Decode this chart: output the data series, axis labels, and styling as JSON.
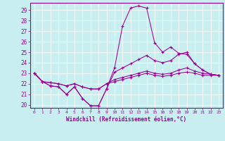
{
  "xlabel": "Windchill (Refroidissement éolien,°C)",
  "bg_color": "#c8eef0",
  "line_color": "#990099",
  "grid_color": "#ffffff",
  "spine_color": "#990099",
  "ylim": [
    19.7,
    29.7
  ],
  "xlim": [
    -0.5,
    23.5
  ],
  "yticks": [
    20,
    21,
    22,
    23,
    24,
    25,
    26,
    27,
    28,
    29
  ],
  "xticks": [
    0,
    1,
    2,
    3,
    4,
    5,
    6,
    7,
    8,
    9,
    10,
    11,
    12,
    13,
    14,
    15,
    16,
    17,
    18,
    19,
    20,
    21,
    22,
    23
  ],
  "line1_x": [
    0,
    1,
    2,
    3,
    4,
    5,
    6,
    7,
    8,
    9,
    10,
    11,
    12,
    13,
    14,
    15,
    16,
    17,
    18,
    19,
    20,
    21,
    22,
    23
  ],
  "line1_y": [
    23.0,
    22.2,
    21.8,
    21.7,
    21.0,
    21.7,
    20.6,
    19.9,
    19.9,
    21.5,
    23.5,
    27.5,
    29.2,
    29.4,
    29.2,
    25.9,
    25.0,
    25.5,
    24.9,
    24.8,
    23.9,
    23.3,
    22.9,
    22.8
  ],
  "line2_x": [
    0,
    1,
    2,
    3,
    4,
    5,
    6,
    7,
    8,
    9,
    10,
    11,
    12,
    13,
    14,
    15,
    16,
    17,
    18,
    19,
    20,
    21,
    22,
    23
  ],
  "line2_y": [
    23.0,
    22.2,
    21.8,
    21.7,
    21.0,
    21.7,
    20.6,
    19.9,
    19.9,
    21.5,
    23.1,
    23.5,
    23.9,
    24.3,
    24.7,
    24.2,
    24.0,
    24.2,
    24.8,
    25.0,
    23.9,
    23.3,
    22.9,
    22.8
  ],
  "line3_x": [
    0,
    1,
    2,
    3,
    4,
    5,
    6,
    7,
    8,
    9,
    10,
    11,
    12,
    13,
    14,
    15,
    16,
    17,
    18,
    19,
    20,
    21,
    22,
    23
  ],
  "line3_y": [
    23.0,
    22.2,
    22.1,
    22.0,
    21.8,
    22.0,
    21.7,
    21.5,
    21.5,
    22.0,
    22.4,
    22.6,
    22.8,
    23.0,
    23.2,
    23.0,
    22.9,
    23.0,
    23.3,
    23.5,
    23.2,
    23.0,
    22.9,
    22.8
  ],
  "line4_x": [
    0,
    1,
    2,
    3,
    4,
    5,
    6,
    7,
    8,
    9,
    10,
    11,
    12,
    13,
    14,
    15,
    16,
    17,
    18,
    19,
    20,
    21,
    22,
    23
  ],
  "line4_y": [
    23.0,
    22.2,
    22.1,
    22.0,
    21.8,
    22.0,
    21.7,
    21.5,
    21.5,
    22.0,
    22.2,
    22.4,
    22.6,
    22.8,
    23.0,
    22.8,
    22.7,
    22.8,
    23.0,
    23.1,
    23.0,
    22.8,
    22.8,
    22.8
  ]
}
